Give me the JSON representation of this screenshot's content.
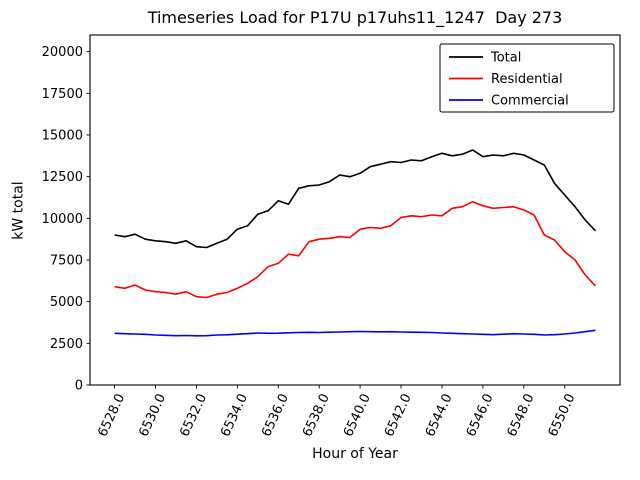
{
  "figure": {
    "background": "#ffffff"
  },
  "chart_data": {
    "type": "line",
    "title": "Timeseries Load for P17U p17uhs11_1247  Day 273",
    "xlabel": "Hour of Year",
    "ylabel": "kW total",
    "x": [
      6528.0,
      6528.5,
      6529.0,
      6529.5,
      6530.0,
      6530.5,
      6531.0,
      6531.5,
      6532.0,
      6532.5,
      6533.0,
      6533.5,
      6534.0,
      6534.5,
      6535.0,
      6535.5,
      6536.0,
      6536.5,
      6537.0,
      6537.5,
      6538.0,
      6538.5,
      6539.0,
      6539.5,
      6540.0,
      6540.5,
      6541.0,
      6541.5,
      6542.0,
      6542.5,
      6543.0,
      6543.5,
      6544.0,
      6544.5,
      6545.0,
      6545.5,
      6546.0,
      6546.5,
      6547.0,
      6547.5,
      6548.0,
      6548.5,
      6549.0,
      6549.5,
      6550.0,
      6550.5,
      6551.0,
      6551.5
    ],
    "series": [
      {
        "name": "Total",
        "color": "#000000",
        "values": [
          9000,
          8900,
          9050,
          8750,
          8650,
          8600,
          8500,
          8650,
          8300,
          8250,
          8500,
          8750,
          9350,
          9550,
          10250,
          10450,
          11050,
          10850,
          11800,
          11950,
          12000,
          12200,
          12600,
          12500,
          12700,
          13100,
          13250,
          13400,
          13350,
          13500,
          13450,
          13700,
          13900,
          13750,
          13850,
          14100,
          13700,
          13800,
          13750,
          13900,
          13800,
          13500,
          13200,
          12100,
          11400,
          10700,
          9900,
          9250
        ]
      },
      {
        "name": "Residential",
        "color": "#ff0000",
        "values": [
          5900,
          5800,
          6000,
          5700,
          5600,
          5550,
          5450,
          5600,
          5300,
          5250,
          5450,
          5550,
          5800,
          6100,
          6500,
          7100,
          7300,
          7850,
          7750,
          8600,
          8750,
          8800,
          8900,
          8850,
          9350,
          9450,
          9400,
          9550,
          10050,
          10150,
          10100,
          10200,
          10150,
          10600,
          10700,
          11000,
          10750,
          10600,
          10650,
          10700,
          10500,
          10200,
          9000,
          8700,
          8000,
          7500,
          6600,
          5950
        ]
      },
      {
        "name": "Commercial",
        "color": "#0000ff",
        "values": [
          3100,
          3080,
          3060,
          3040,
          3000,
          2980,
          2960,
          2970,
          2950,
          2960,
          3000,
          3010,
          3050,
          3080,
          3120,
          3100,
          3110,
          3130,
          3150,
          3160,
          3150,
          3170,
          3180,
          3200,
          3210,
          3200,
          3190,
          3200,
          3180,
          3170,
          3160,
          3150,
          3120,
          3100,
          3080,
          3060,
          3040,
          3020,
          3050,
          3080,
          3060,
          3040,
          3000,
          3020,
          3060,
          3120,
          3200,
          3280
        ]
      }
    ],
    "xticks": [
      6528,
      6530,
      6532,
      6534,
      6536,
      6538,
      6540,
      6542,
      6544,
      6546,
      6548,
      6550
    ],
    "xtick_labels": [
      "6528.0",
      "6530.0",
      "6532.0",
      "6534.0",
      "6536.0",
      "6538.0",
      "6540.0",
      "6542.0",
      "6544.0",
      "6546.0",
      "6548.0",
      "6550.0"
    ],
    "yticks": [
      0,
      2500,
      5000,
      7500,
      10000,
      12500,
      15000,
      17500,
      20000
    ],
    "ytick_labels": [
      "0",
      "2500",
      "5000",
      "7500",
      "10000",
      "12500",
      "15000",
      "17500",
      "20000"
    ],
    "xlim": [
      6526.8,
      6552.7
    ],
    "ylim": [
      0,
      21000
    ],
    "grid": false,
    "legend": {
      "position": "upper right",
      "entries": [
        "Total",
        "Residential",
        "Commercial"
      ]
    }
  }
}
